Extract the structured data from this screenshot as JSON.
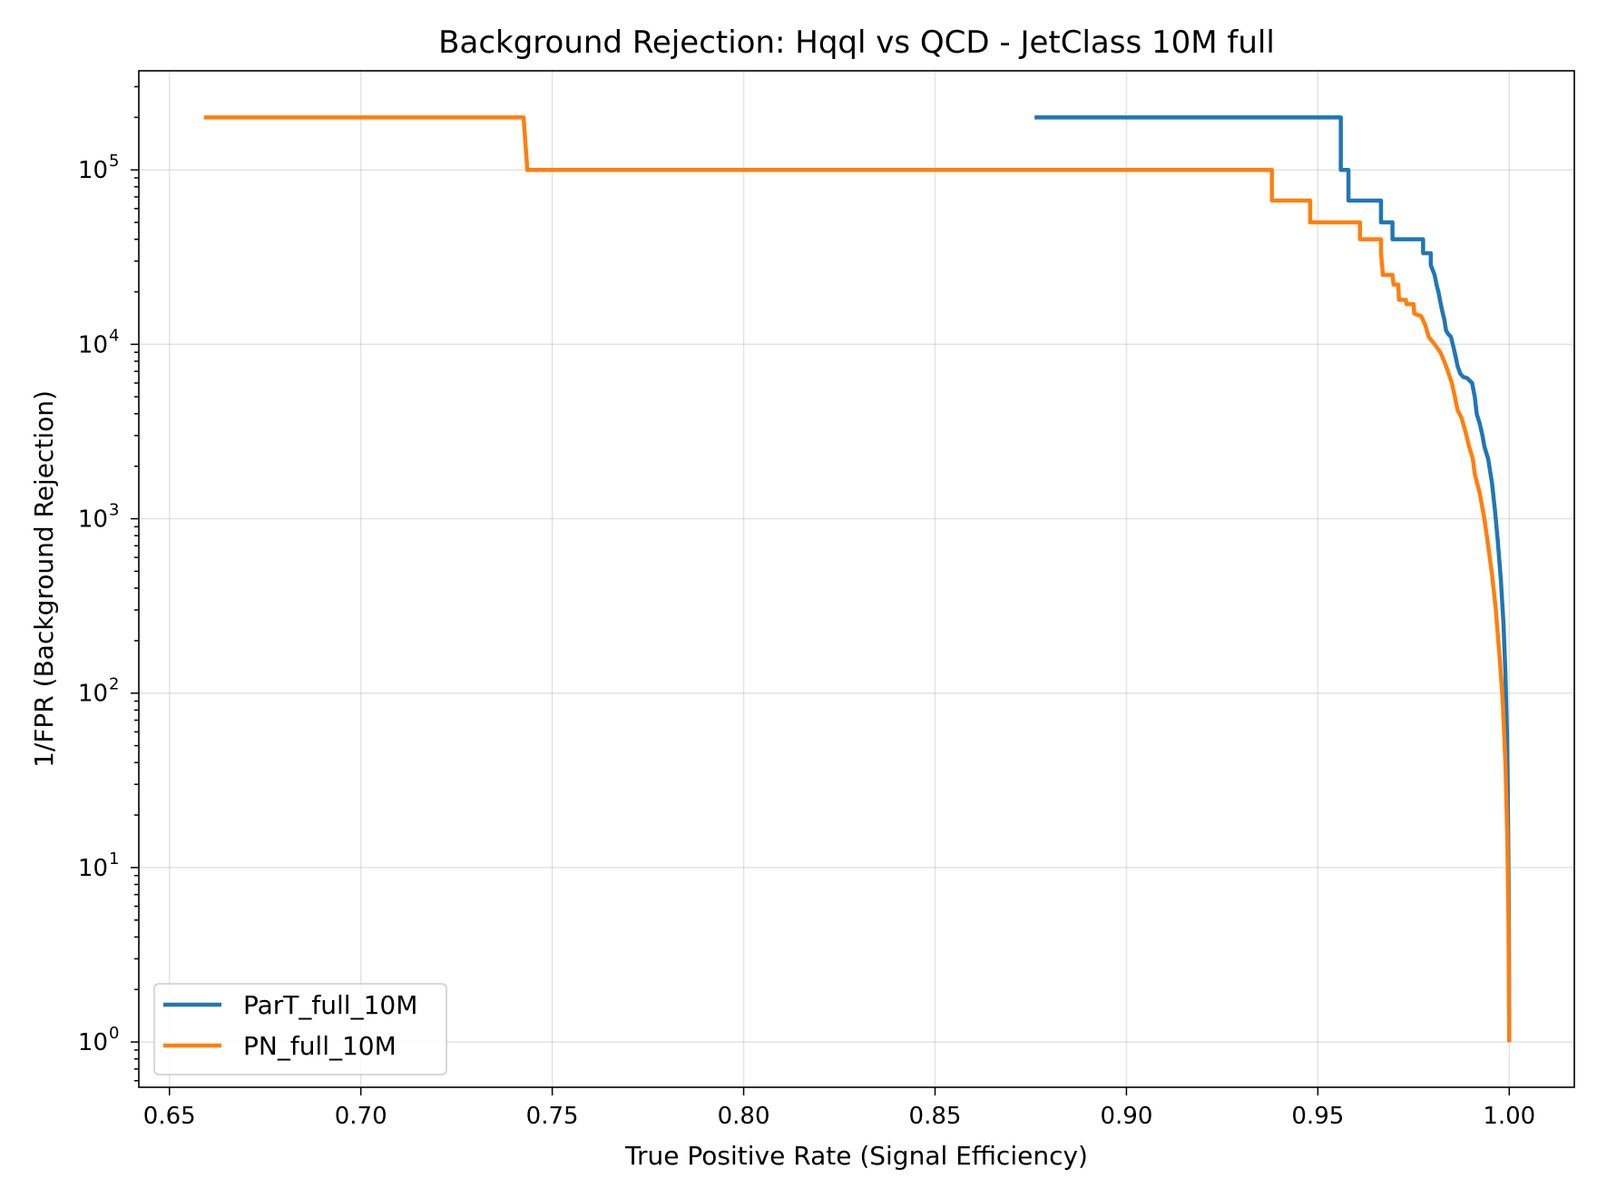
{
  "chart_data": {
    "type": "line",
    "title": "Background Rejection: Hqql vs QCD - JetClass 10M full",
    "xlabel": "True Positive Rate (Signal Efficiency)",
    "ylabel": "1/FPR (Background Rejection)",
    "xlim": [
      0.642,
      1.017
    ],
    "ylim": [
      0.55,
      370000
    ],
    "yscale": "log",
    "grid": true,
    "legend_position": "lower-left",
    "x_ticks": [
      {
        "value": 0.65,
        "label": "0.65"
      },
      {
        "value": 0.7,
        "label": "0.70"
      },
      {
        "value": 0.75,
        "label": "0.75"
      },
      {
        "value": 0.8,
        "label": "0.80"
      },
      {
        "value": 0.85,
        "label": "0.85"
      },
      {
        "value": 0.9,
        "label": "0.90"
      },
      {
        "value": 0.95,
        "label": "0.95"
      },
      {
        "value": 1.0,
        "label": "1.00"
      }
    ],
    "y_ticks": [
      {
        "value": 1,
        "base": "10",
        "exp": "0"
      },
      {
        "value": 10,
        "base": "10",
        "exp": "1"
      },
      {
        "value": 100,
        "base": "10",
        "exp": "2"
      },
      {
        "value": 1000,
        "base": "10",
        "exp": "3"
      },
      {
        "value": 10000,
        "base": "10",
        "exp": "4"
      },
      {
        "value": 100000,
        "base": "10",
        "exp": "5"
      }
    ],
    "series": [
      {
        "name": "ParT_full_10M",
        "color": "#1f77b4",
        "points": [
          [
            0.876,
            200000
          ],
          [
            0.956,
            200000
          ],
          [
            0.956,
            100000
          ],
          [
            0.958,
            100000
          ],
          [
            0.958,
            66700
          ],
          [
            0.9665,
            66700
          ],
          [
            0.9665,
            50000
          ],
          [
            0.9695,
            50000
          ],
          [
            0.9695,
            40000
          ],
          [
            0.9775,
            40000
          ],
          [
            0.9775,
            33300
          ],
          [
            0.9795,
            33300
          ],
          [
            0.9795,
            28500
          ],
          [
            0.9805,
            25000
          ],
          [
            0.981,
            22000
          ],
          [
            0.9815,
            20000
          ],
          [
            0.982,
            17500
          ],
          [
            0.9825,
            15500
          ],
          [
            0.983,
            14000
          ],
          [
            0.9835,
            12000
          ],
          [
            0.984,
            11500
          ],
          [
            0.9848,
            11000
          ],
          [
            0.985,
            10500
          ],
          [
            0.9855,
            9500
          ],
          [
            0.986,
            8500
          ],
          [
            0.9865,
            7500
          ],
          [
            0.9872,
            6800
          ],
          [
            0.988,
            6500
          ],
          [
            0.989,
            6400
          ],
          [
            0.9903,
            6000
          ],
          [
            0.991,
            5000
          ],
          [
            0.9915,
            4000
          ],
          [
            0.9923,
            3500
          ],
          [
            0.993,
            3000
          ],
          [
            0.9935,
            2600
          ],
          [
            0.9945,
            2200
          ],
          [
            0.9955,
            1600
          ],
          [
            0.9963,
            1100
          ],
          [
            0.997,
            750
          ],
          [
            0.9978,
            450
          ],
          [
            0.9985,
            250
          ],
          [
            0.999,
            130
          ],
          [
            0.9994,
            60
          ],
          [
            0.9996,
            30
          ],
          [
            0.9998,
            10
          ],
          [
            0.99995,
            3
          ],
          [
            1.0,
            1
          ]
        ]
      },
      {
        "name": "PN_full_10M",
        "color": "#ff7f0e",
        "points": [
          [
            0.659,
            200000
          ],
          [
            0.7425,
            200000
          ],
          [
            0.7435,
            100000
          ],
          [
            0.938,
            100000
          ],
          [
            0.938,
            66700
          ],
          [
            0.948,
            66700
          ],
          [
            0.948,
            50000
          ],
          [
            0.961,
            50000
          ],
          [
            0.961,
            40000
          ],
          [
            0.9665,
            40000
          ],
          [
            0.9665,
            33300
          ],
          [
            0.967,
            25000
          ],
          [
            0.9695,
            25000
          ],
          [
            0.9698,
            22000
          ],
          [
            0.971,
            22000
          ],
          [
            0.9712,
            18000
          ],
          [
            0.973,
            18000
          ],
          [
            0.9732,
            17000
          ],
          [
            0.975,
            17000
          ],
          [
            0.9752,
            15000
          ],
          [
            0.977,
            14500
          ],
          [
            0.978,
            13000
          ],
          [
            0.979,
            11000
          ],
          [
            0.9805,
            10000
          ],
          [
            0.982,
            9000
          ],
          [
            0.983,
            8000
          ],
          [
            0.984,
            7000
          ],
          [
            0.985,
            6000
          ],
          [
            0.9858,
            5000
          ],
          [
            0.9865,
            4200
          ],
          [
            0.9875,
            3800
          ],
          [
            0.9885,
            3200
          ],
          [
            0.9895,
            2600
          ],
          [
            0.9905,
            2200
          ],
          [
            0.991,
            1800
          ],
          [
            0.9923,
            1400
          ],
          [
            0.9935,
            1000
          ],
          [
            0.9945,
            700
          ],
          [
            0.9955,
            480
          ],
          [
            0.9965,
            300
          ],
          [
            0.9975,
            160
          ],
          [
            0.9983,
            90
          ],
          [
            0.999,
            40
          ],
          [
            0.9995,
            15
          ],
          [
            0.9998,
            5
          ],
          [
            1.0,
            1
          ]
        ]
      }
    ]
  }
}
